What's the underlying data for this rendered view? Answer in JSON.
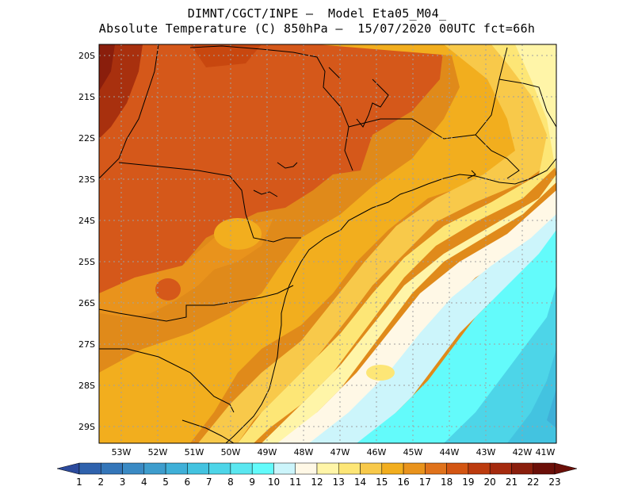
{
  "title": {
    "line1": "DIMNT/CGCT/INPE —  Model Eta05_M04_",
    "line2": "Absolute Temperature (C) 850hPa —  15/07/2020 00UTC fct=66h"
  },
  "map": {
    "lat_labels": [
      "20S",
      "21S",
      "22S",
      "23S",
      "24S",
      "25S",
      "26S",
      "27S",
      "28S",
      "29S"
    ],
    "lon_labels": [
      "53W",
      "52W",
      "51W",
      "50W",
      "49W",
      "48W",
      "47W",
      "46W",
      "45W",
      "44W",
      "43W",
      "42W",
      "41W"
    ]
  },
  "colorbar": {
    "labels": [
      "1",
      "2",
      "3",
      "4",
      "5",
      "6",
      "7",
      "8",
      "9",
      "10",
      "11",
      "12",
      "13",
      "14",
      "15",
      "16",
      "17",
      "18",
      "19",
      "20",
      "21",
      "22",
      "23"
    ],
    "colors": [
      "#2b4a9c",
      "#2f62ad",
      "#3476b9",
      "#3a8ac4",
      "#3e9dcd",
      "#3fb0d8",
      "#43c3e0",
      "#4dd5e8",
      "#5ae7f0",
      "#63fbfb",
      "#ccf5fb",
      "#fff8e6",
      "#fff5a8",
      "#fde676",
      "#f8c94a",
      "#f2ae1e",
      "#e9931c",
      "#e0721b",
      "#d35512",
      "#bc3b0e",
      "#a52a0e",
      "#8a1e0c",
      "#6b0f08"
    ],
    "low_color": "#2b4a9c",
    "high_color": "#6b0f08"
  }
}
